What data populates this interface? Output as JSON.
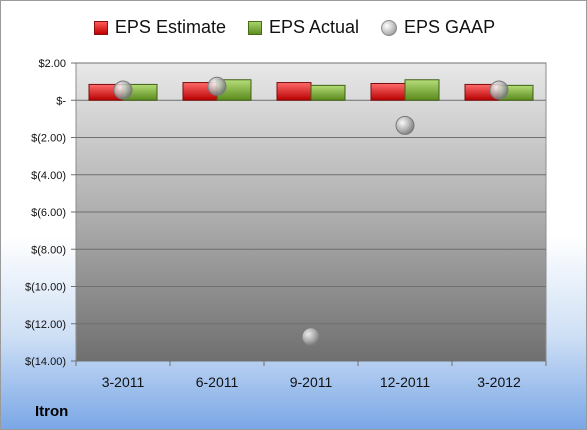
{
  "chart_data": {
    "type": "bar",
    "title": "",
    "xlabel": "",
    "ylabel": "",
    "categories": [
      "3-2011",
      "6-2011",
      "9-2011",
      "12-2011",
      "3-2012"
    ],
    "series": [
      {
        "name": "EPS Estimate",
        "kind": "bar",
        "color": "#e02020",
        "values": [
          0.85,
          0.95,
          0.95,
          0.9,
          0.85
        ]
      },
      {
        "name": "EPS Actual",
        "kind": "bar",
        "color": "#7fb03a",
        "values": [
          0.85,
          1.1,
          0.8,
          1.1,
          0.8
        ]
      },
      {
        "name": "EPS GAAP",
        "kind": "scatter",
        "color": "#a8a8a8",
        "values": [
          0.55,
          0.75,
          -12.7,
          -1.35,
          0.55
        ]
      }
    ],
    "ylim": [
      -14,
      2
    ],
    "yticks": [
      2,
      0,
      -2,
      -4,
      -6,
      -8,
      -10,
      -12,
      -14
    ],
    "ytick_labels": [
      "$2.00",
      "$-",
      "$(2.00)",
      "$(4.00)",
      "$(6.00)",
      "$(8.00)",
      "$(10.00)",
      "$(12.00)",
      "$(14.00)"
    ],
    "grid": true,
    "legend_position": "top"
  },
  "company": "Itron"
}
